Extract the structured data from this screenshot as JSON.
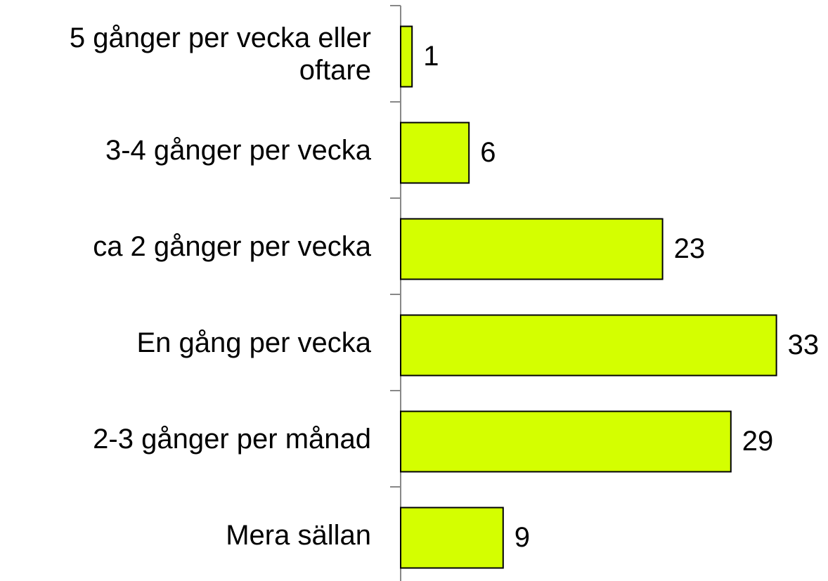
{
  "chart_data": {
    "type": "bar",
    "orientation": "horizontal",
    "categories": [
      "5 gånger per vecka eller oftare",
      "3-4 gånger per vecka",
      "ca 2 gånger per vecka",
      "En gång per vecka",
      "2-3 gånger per månad",
      "Mera sällan"
    ],
    "values": [
      1,
      6,
      23,
      33,
      29,
      9
    ],
    "color": "#d4ff00"
  }
}
